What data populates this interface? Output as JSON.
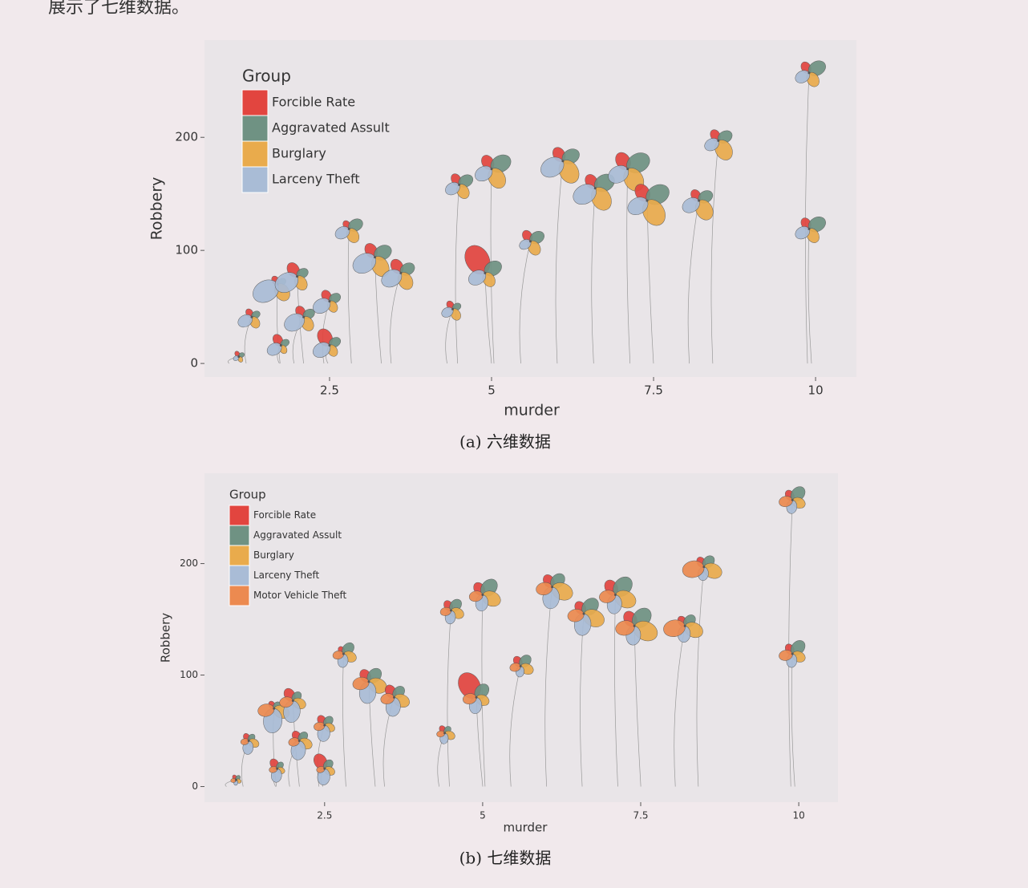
{
  "intro_text": "展示了七维数据。",
  "chart_data": [
    {
      "type": "flower",
      "caption": "(a) 六维数据",
      "xlabel": "murder",
      "ylabel": "Robbery",
      "legend_title": "Group",
      "x": [
        1.1,
        1.3,
        1.75,
        1.7,
        2.0,
        2.1,
        2.5,
        2.5,
        2.8,
        3.2,
        3.6,
        4.4,
        4.5,
        5.0,
        4.9,
        5.6,
        6.1,
        6.6,
        7.1,
        7.4,
        8.2,
        8.5,
        9.9,
        9.9
      ],
      "y": [
        6,
        41,
        16,
        70,
        77,
        41,
        55,
        16,
        119,
        94,
        80,
        48,
        158,
        172,
        80,
        108,
        179,
        155,
        172,
        144,
        144,
        197,
        257,
        119
      ],
      "series": [
        {
          "name": "Forcible Rate",
          "color": "#e2453f",
          "values": [
            0.2,
            0.3,
            0.4,
            0.3,
            0.5,
            0.4,
            0.4,
            0.6,
            0.3,
            0.5,
            0.5,
            0.3,
            0.4,
            0.5,
            1.0,
            0.4,
            0.5,
            0.5,
            0.6,
            0.6,
            0.4,
            0.4,
            0.4,
            0.4
          ]
        },
        {
          "name": "Aggravated Assult",
          "color": "#6f9283",
          "values": [
            0.2,
            0.3,
            0.3,
            0.3,
            0.4,
            0.4,
            0.4,
            0.4,
            0.5,
            0.6,
            0.5,
            0.3,
            0.5,
            0.7,
            0.6,
            0.5,
            0.6,
            0.7,
            0.8,
            0.8,
            0.5,
            0.5,
            0.6,
            0.6
          ]
        },
        {
          "name": "Burglary",
          "color": "#e9ab4c",
          "values": [
            0.2,
            0.4,
            0.3,
            0.6,
            0.5,
            0.5,
            0.4,
            0.4,
            0.5,
            0.7,
            0.6,
            0.4,
            0.5,
            0.7,
            0.5,
            0.5,
            0.8,
            0.8,
            0.8,
            0.9,
            0.7,
            0.7,
            0.5,
            0.5
          ]
        },
        {
          "name": "Larceny Theft",
          "color": "#a9bcd6",
          "values": [
            0.2,
            0.5,
            0.5,
            0.9,
            0.8,
            0.7,
            0.6,
            0.6,
            0.5,
            0.8,
            0.7,
            0.4,
            0.5,
            0.6,
            0.6,
            0.4,
            0.8,
            0.8,
            0.7,
            0.7,
            0.6,
            0.5,
            0.5,
            0.5
          ]
        }
      ],
      "xlim": [
        0.57,
        10.63
      ],
      "ylim": [
        -12,
        286
      ],
      "xticks": [
        2.5,
        5,
        7.5,
        10
      ],
      "yticks": [
        0,
        100,
        200
      ]
    },
    {
      "type": "flower",
      "caption": "(b) 七维数据",
      "xlabel": "murder",
      "ylabel": "Robbery",
      "legend_title": "Group",
      "x": [
        1.1,
        1.3,
        1.75,
        1.7,
        2.0,
        2.1,
        2.5,
        2.5,
        2.8,
        3.2,
        3.6,
        4.4,
        4.5,
        5.0,
        4.9,
        5.6,
        6.1,
        6.6,
        7.1,
        7.4,
        8.2,
        8.5,
        9.9,
        9.9
      ],
      "y": [
        6,
        41,
        16,
        70,
        77,
        41,
        55,
        16,
        119,
        94,
        80,
        48,
        158,
        172,
        80,
        108,
        179,
        155,
        172,
        144,
        144,
        197,
        257,
        119
      ],
      "series": [
        {
          "name": "Forcible Rate",
          "color": "#e2453f",
          "values": [
            0.2,
            0.3,
            0.4,
            0.3,
            0.5,
            0.4,
            0.4,
            0.6,
            0.3,
            0.5,
            0.5,
            0.3,
            0.4,
            0.5,
            1.0,
            0.4,
            0.5,
            0.5,
            0.6,
            0.6,
            0.4,
            0.4,
            0.4,
            0.4
          ]
        },
        {
          "name": "Aggravated Assult",
          "color": "#6f9283",
          "values": [
            0.2,
            0.3,
            0.3,
            0.3,
            0.4,
            0.4,
            0.4,
            0.4,
            0.5,
            0.6,
            0.5,
            0.3,
            0.5,
            0.7,
            0.6,
            0.5,
            0.6,
            0.7,
            0.8,
            0.8,
            0.5,
            0.5,
            0.6,
            0.6
          ]
        },
        {
          "name": "Burglary",
          "color": "#e9ab4c",
          "values": [
            0.2,
            0.4,
            0.3,
            0.6,
            0.5,
            0.5,
            0.4,
            0.4,
            0.5,
            0.7,
            0.6,
            0.4,
            0.5,
            0.7,
            0.5,
            0.5,
            0.8,
            0.8,
            0.8,
            0.9,
            0.7,
            0.7,
            0.5,
            0.5
          ]
        },
        {
          "name": "Larceny Theft",
          "color": "#a9bcd6",
          "values": [
            0.2,
            0.5,
            0.5,
            0.9,
            0.8,
            0.7,
            0.6,
            0.6,
            0.5,
            0.8,
            0.7,
            0.4,
            0.5,
            0.6,
            0.6,
            0.4,
            0.8,
            0.8,
            0.7,
            0.7,
            0.6,
            0.5,
            0.5,
            0.5
          ]
        },
        {
          "name": "Motor Vehicle Theft",
          "color": "#ec8a50",
          "values": [
            0.2,
            0.3,
            0.3,
            0.6,
            0.5,
            0.4,
            0.4,
            0.3,
            0.4,
            0.6,
            0.5,
            0.3,
            0.4,
            0.5,
            0.5,
            0.4,
            0.6,
            0.6,
            0.6,
            0.7,
            0.8,
            0.8,
            0.5,
            0.5
          ]
        }
      ],
      "xlim": [
        0.6,
        10.62
      ],
      "ylim": [
        -14,
        281
      ],
      "xticks": [
        2.5,
        5,
        7.5,
        10
      ],
      "yticks": [
        0,
        100,
        200
      ]
    }
  ]
}
